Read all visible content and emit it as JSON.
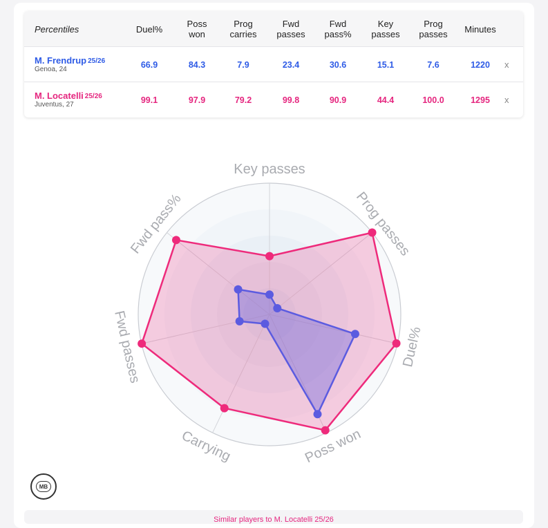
{
  "table": {
    "header_first": "Percentiles",
    "columns": [
      "Duel%",
      "Poss\nwon",
      "Prog\ncarries",
      "Fwd\npasses",
      "Fwd\npass%",
      "Key\npasses",
      "Prog\npasses",
      "Minutes"
    ],
    "rows": [
      {
        "name": "M. Frendrup",
        "season": "25/26",
        "team": "Genoa, 24",
        "color": "#2e5be6",
        "values": [
          "66.9",
          "84.3",
          "7.9",
          "23.4",
          "30.6",
          "15.1",
          "7.6",
          "1220"
        ],
        "remove": "x"
      },
      {
        "name": "M. Locatelli",
        "season": "25/26",
        "team": "Juventus, 27",
        "color": "#e5267f",
        "values": [
          "99.1",
          "97.9",
          "79.2",
          "99.8",
          "90.9",
          "44.4",
          "100.0",
          "1295"
        ],
        "remove": "x"
      }
    ]
  },
  "chart_data": {
    "type": "radar",
    "axes": [
      "Key passes",
      "Prog passes",
      "Duel%",
      "Poss won",
      "Carrying",
      "Fwd passes",
      "Fwd pass%"
    ],
    "range": [
      0,
      100
    ],
    "grid": true,
    "series": [
      {
        "name": "M. Frendrup 25/26",
        "color": "#5b5be0",
        "values": [
          15.1,
          7.6,
          66.9,
          84.3,
          7.9,
          23.4,
          30.6
        ]
      },
      {
        "name": "M. Locatelli 25/26",
        "color": "#ee2a7b",
        "values": [
          44.4,
          100.0,
          99.1,
          97.9,
          79.2,
          99.8,
          90.9
        ]
      }
    ]
  },
  "logo": {
    "text": "MB"
  },
  "footer": {
    "text": "Similar players to M. Locatelli 25/26"
  }
}
